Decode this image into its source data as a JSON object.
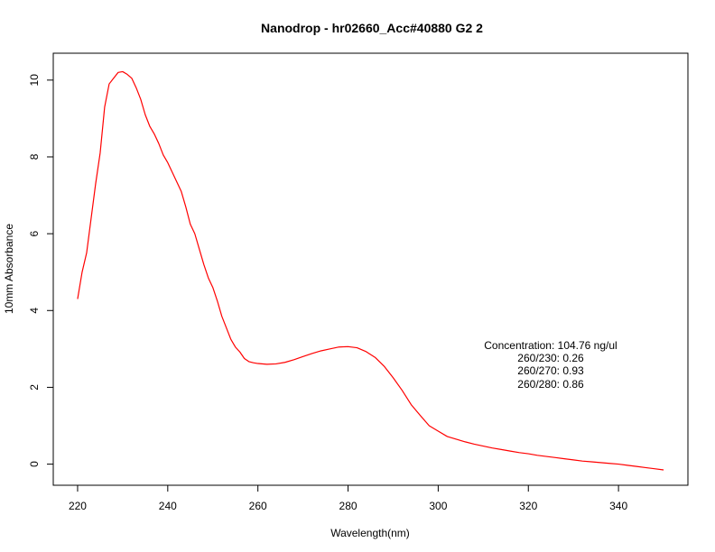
{
  "chart_data": {
    "type": "line",
    "title": "Nanodrop - hr02660_Acc#40880 G2 2",
    "xlabel": "Wavelength(nm)",
    "ylabel": "10mm Absorbance",
    "xlim": [
      214.6,
      355.4
    ],
    "ylim": [
      -0.55,
      10.7
    ],
    "xticks": [
      220,
      240,
      260,
      280,
      300,
      320,
      340
    ],
    "yticks": [
      0,
      2,
      4,
      6,
      8,
      10
    ],
    "grid": false,
    "legend": "none",
    "series": [
      {
        "color": "#ff0000",
        "x": [
          220,
          221,
          222,
          223,
          224,
          225,
          226,
          227,
          228,
          229,
          230,
          231,
          232,
          233,
          234,
          235,
          236,
          237,
          238,
          239,
          240,
          241,
          242,
          243,
          244,
          245,
          246,
          247,
          248,
          249,
          250,
          251,
          252,
          253,
          254,
          255,
          256,
          257,
          258,
          259,
          260,
          262,
          264,
          266,
          268,
          270,
          272,
          274,
          276,
          278,
          280,
          282,
          284,
          286,
          288,
          290,
          292,
          294,
          296,
          298,
          300,
          302,
          304,
          306,
          308,
          310,
          312,
          314,
          316,
          318,
          320,
          322,
          324,
          326,
          328,
          330,
          332,
          334,
          336,
          338,
          340,
          342,
          344,
          346,
          348,
          350
        ],
        "y": [
          4.3,
          5.0,
          5.5,
          6.4,
          7.3,
          8.1,
          9.3,
          9.9,
          10.05,
          10.2,
          10.22,
          10.15,
          10.05,
          9.8,
          9.5,
          9.1,
          8.8,
          8.6,
          8.35,
          8.05,
          7.85,
          7.6,
          7.35,
          7.1,
          6.7,
          6.25,
          6.0,
          5.6,
          5.2,
          4.85,
          4.6,
          4.25,
          3.85,
          3.55,
          3.25,
          3.05,
          2.92,
          2.75,
          2.67,
          2.64,
          2.62,
          2.6,
          2.61,
          2.65,
          2.72,
          2.8,
          2.88,
          2.95,
          3.0,
          3.05,
          3.06,
          3.03,
          2.93,
          2.78,
          2.55,
          2.25,
          1.92,
          1.55,
          1.27,
          1.0,
          0.86,
          0.72,
          0.65,
          0.58,
          0.52,
          0.47,
          0.42,
          0.38,
          0.34,
          0.3,
          0.27,
          0.23,
          0.2,
          0.17,
          0.14,
          0.11,
          0.08,
          0.06,
          0.04,
          0.02,
          0.0,
          -0.03,
          -0.06,
          -0.09,
          -0.12,
          -0.15
        ]
      }
    ],
    "annotations": [
      "Concentration: 104.76 ng/ul",
      "260/230: 0.26",
      "260/270: 0.93",
      "260/280: 0.86"
    ]
  }
}
